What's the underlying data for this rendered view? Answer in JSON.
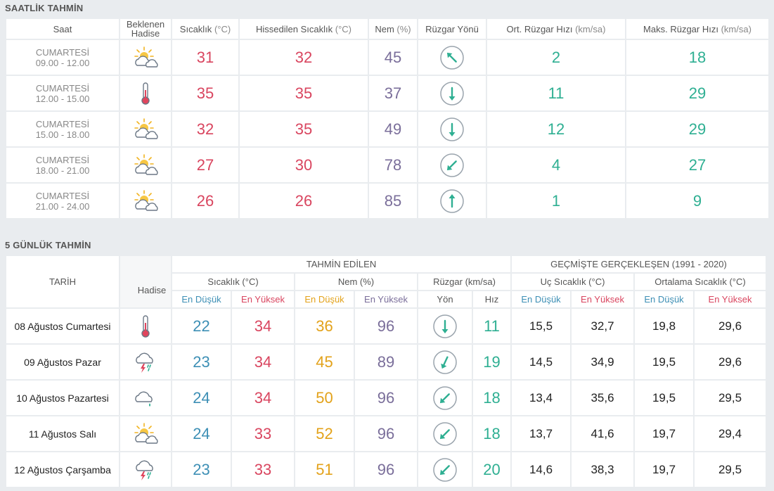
{
  "hourly": {
    "title": "SAATLİK TAHMİN",
    "headers": {
      "time": "Saat",
      "event": "Beklenen Hadise",
      "temp": "Sıcaklık",
      "temp_unit": "(°C)",
      "feels": "Hissedilen Sıcaklık",
      "feels_unit": "(°C)",
      "humidity": "Nem",
      "humidity_unit": "(%)",
      "wind_dir": "Rüzgar Yönü",
      "avg_wind": "Ort. Rüzgar Hızı",
      "avg_wind_unit": "(km/sa)",
      "max_wind": "Maks. Rüzgar Hızı",
      "max_wind_unit": "(km/sa)"
    },
    "rows": [
      {
        "day": "CUMARTESİ",
        "range": "09.00 - 12.00",
        "icon": "partly-cloudy-icon",
        "temp": "31",
        "feels": "32",
        "humidity": "45",
        "wind_dir": "nw",
        "wind_rot": -45,
        "avg_wind": "2",
        "max_wind": "18"
      },
      {
        "day": "CUMARTESİ",
        "range": "12.00 - 15.00",
        "icon": "thermometer-icon",
        "temp": "35",
        "feels": "35",
        "humidity": "37",
        "wind_dir": "s",
        "wind_rot": 180,
        "avg_wind": "11",
        "max_wind": "29"
      },
      {
        "day": "CUMARTESİ",
        "range": "15.00 - 18.00",
        "icon": "partly-cloudy-icon",
        "temp": "32",
        "feels": "35",
        "humidity": "49",
        "wind_dir": "s",
        "wind_rot": 180,
        "avg_wind": "12",
        "max_wind": "29"
      },
      {
        "day": "CUMARTESİ",
        "range": "18.00 - 21.00",
        "icon": "partly-cloudy-icon",
        "temp": "27",
        "feels": "30",
        "humidity": "78",
        "wind_dir": "sw",
        "wind_rot": 225,
        "avg_wind": "4",
        "max_wind": "27"
      },
      {
        "day": "CUMARTESİ",
        "range": "21.00 - 24.00",
        "icon": "partly-cloudy-icon",
        "temp": "26",
        "feels": "26",
        "humidity": "85",
        "wind_dir": "n",
        "wind_rot": 0,
        "avg_wind": "1",
        "max_wind": "9"
      }
    ]
  },
  "daily": {
    "title": "5 GÜNLÜK TAHMİN",
    "headers": {
      "date": "TARİH",
      "event": "Hadise",
      "forecast_group": "TAHMİN EDİLEN",
      "history_group": "GEÇMİŞTE GERÇEKLEŞEN (1991 - 2020)",
      "temp": "Sıcaklık (°C)",
      "humidity": "Nem (%)",
      "wind": "Rüzgar (km/sa)",
      "extreme_temp": "Uç Sıcaklık (°C)",
      "avg_temp": "Ortalama Sıcaklık (°C)",
      "low": "En Düşük",
      "high": "En Yüksek",
      "dir": "Yön",
      "speed": "Hız"
    },
    "rows": [
      {
        "date": "08 Ağustos Cumartesi",
        "icon": "thermometer-icon",
        "tmin": "22",
        "tmax": "34",
        "hmin": "36",
        "hmax": "96",
        "wind_dir": "s",
        "wind_rot": 180,
        "speed": "11",
        "xmin": "15,5",
        "xmax": "32,7",
        "amin": "19,8",
        "amax": "29,6"
      },
      {
        "date": "09 Ağustos Pazar",
        "icon": "thunderstorm-icon",
        "tmin": "23",
        "tmax": "34",
        "hmin": "45",
        "hmax": "89",
        "wind_dir": "sw",
        "wind_rot": 205,
        "speed": "19",
        "xmin": "14,5",
        "xmax": "34,9",
        "amin": "19,5",
        "amax": "29,6"
      },
      {
        "date": "10 Ağustos Pazartesi",
        "icon": "light-rain-icon",
        "tmin": "24",
        "tmax": "34",
        "hmin": "50",
        "hmax": "96",
        "wind_dir": "sw",
        "wind_rot": 225,
        "speed": "18",
        "xmin": "13,4",
        "xmax": "35,6",
        "amin": "19,5",
        "amax": "29,5"
      },
      {
        "date": "11 Ağustos Salı",
        "icon": "partly-cloudy-icon",
        "tmin": "24",
        "tmax": "33",
        "hmin": "52",
        "hmax": "96",
        "wind_dir": "sw",
        "wind_rot": 225,
        "speed": "18",
        "xmin": "13,7",
        "xmax": "41,6",
        "amin": "19,7",
        "amax": "29,4"
      },
      {
        "date": "12 Ağustos Çarşamba",
        "icon": "thunderstorm-icon",
        "tmin": "23",
        "tmax": "33",
        "hmin": "51",
        "hmax": "96",
        "wind_dir": "sw",
        "wind_rot": 225,
        "speed": "20",
        "xmin": "14,6",
        "xmax": "38,3",
        "amin": "19,7",
        "amax": "29,5"
      }
    ]
  },
  "colors": {
    "red": "#d9455f",
    "purple": "#7a6e9a",
    "teal": "#2eaf92",
    "blue": "#3d8fb5",
    "orange": "#e3a21a"
  }
}
